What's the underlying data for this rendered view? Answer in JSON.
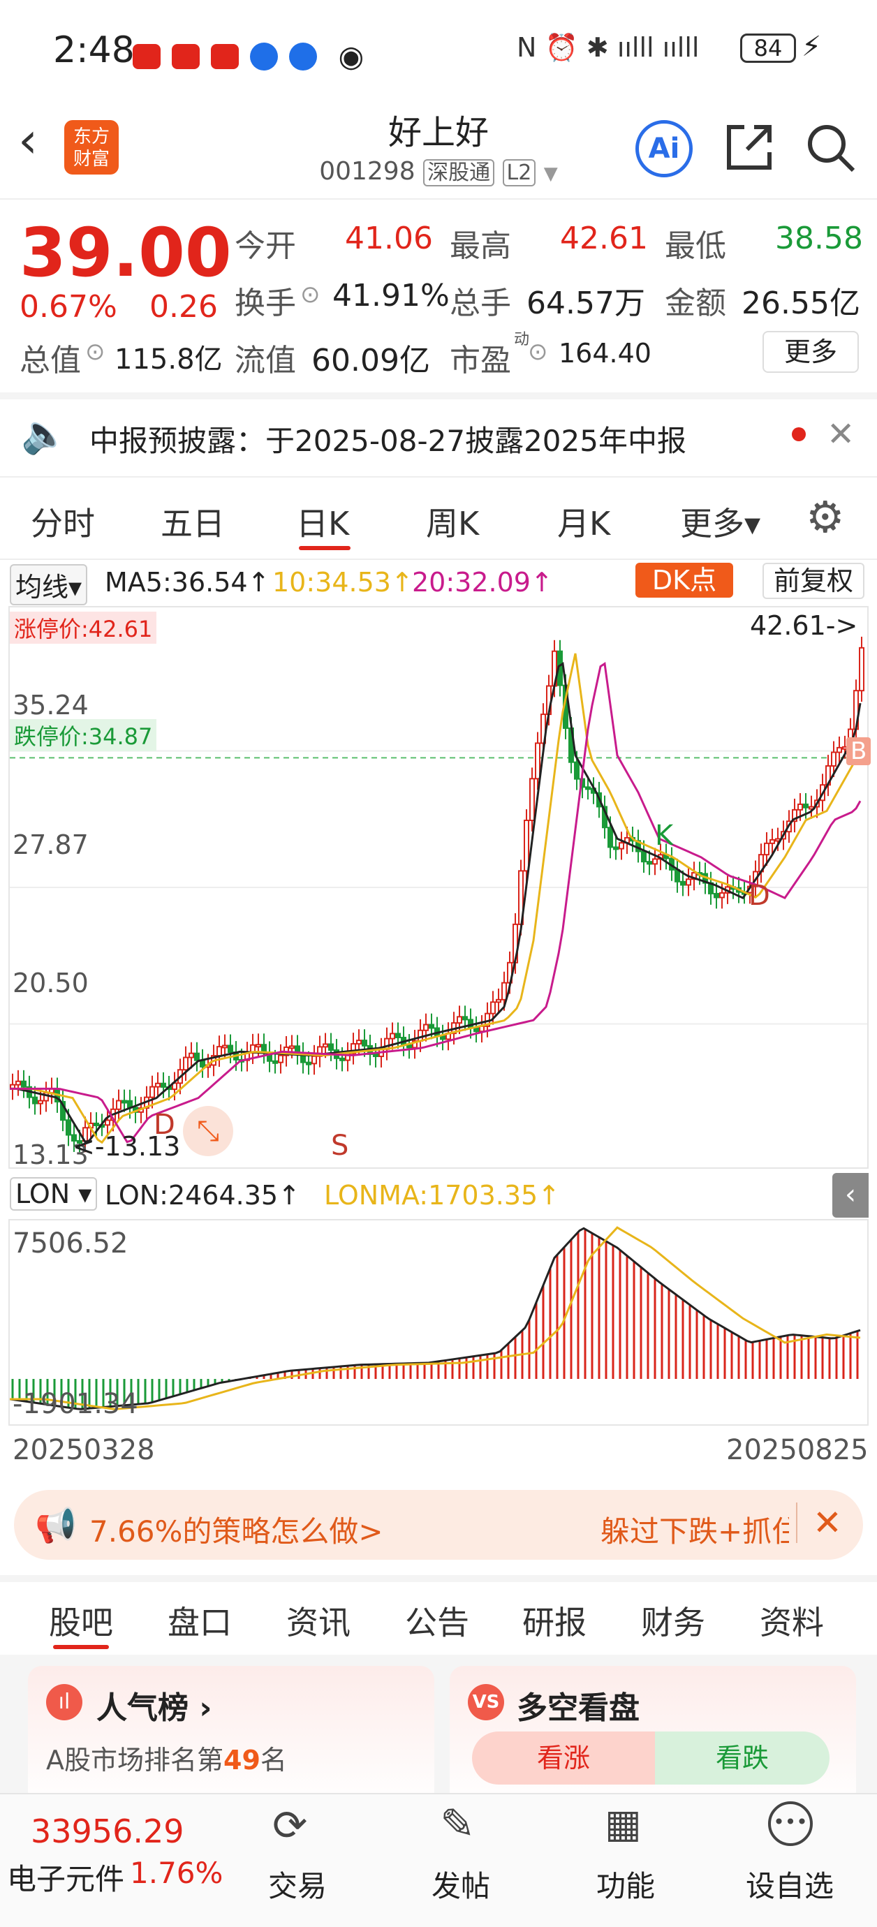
{
  "status": {
    "time": "2:48",
    "battery": "84"
  },
  "header": {
    "name": "好上好",
    "code": "001298",
    "tag1": "深股通",
    "tag2": "L2",
    "logo_line1": "东方",
    "logo_line2": "财富",
    "ai": "Ai"
  },
  "quote": {
    "price": "39.00",
    "pct": "0.67%",
    "chg": "0.26",
    "open_label": "今开",
    "open": "41.06",
    "high_label": "最高",
    "high": "42.61",
    "low_label": "最低",
    "low": "38.58",
    "turn_label": "换手",
    "turn": "41.91%",
    "vol_label": "总手",
    "vol": "64.57万",
    "amt_label": "金额",
    "amt": "26.55亿",
    "mcap_label": "总值",
    "mcap": "115.8亿",
    "float_label": "流值",
    "float": "60.09亿",
    "pe_label": "市盈",
    "pe_sup": "动",
    "pe": "164.40",
    "more": "更多"
  },
  "notice": {
    "text": "中报预披露：于2025-08-27披露2025年中报"
  },
  "chart_tabs": [
    "分时",
    "五日",
    "日K",
    "周K",
    "月K",
    "更多▾"
  ],
  "ma": {
    "dropdown": "均线▾",
    "ma5": "MA5:36.54↑",
    "ma10": "10:34.53↑",
    "ma20": "20:32.09↑",
    "dk": "DK点",
    "fq": "前复权"
  },
  "kline": {
    "limit_up": "涨停价:42.61",
    "limit_down": "跌停价:34.87",
    "y1": "42.61",
    "y2": "35.24",
    "y3": "27.87",
    "y4": "20.50",
    "y5": "13.13",
    "max_label": "42.61->",
    "min_label": "<-13.13",
    "mark_d1": "D",
    "mark_s": "S",
    "mark_k": "K",
    "mark_d2": "D",
    "mark_b": "B"
  },
  "lon": {
    "dropdown": "LON ▾",
    "lon": "LON:2464.35↑",
    "lonma": "LONMA:1703.35↑",
    "ytop": "7506.52",
    "ybot": "-1901.34",
    "date_start": "20250328",
    "date_end": "20250825"
  },
  "banner": {
    "left": "7.66%的策略怎么做>",
    "right": "躲过下跌+抓住"
  },
  "section_tabs": [
    "股吧",
    "盘口",
    "资讯",
    "公告",
    "研报",
    "财务",
    "资料"
  ],
  "cards": {
    "popular_title": "人气榜 ›",
    "popular_sub_pre": "A股市场排名第",
    "popular_rank": "49",
    "popular_sub_post": "名",
    "vs_title": "多空看盘",
    "bull": "看涨",
    "bear": "看跌"
  },
  "bottom": {
    "index_val": "33956.29",
    "index_name": "电子元件",
    "index_pct": "1.76%",
    "trade": "交易",
    "post": "发帖",
    "func": "功能",
    "watch": "设自选"
  },
  "chart_data": {
    "type": "candlestick",
    "ylim": [
      13.13,
      42.61
    ],
    "x_range": [
      "20250328",
      "20250825"
    ],
    "last_close": 39.0,
    "high": 42.61,
    "low": 13.13
  }
}
